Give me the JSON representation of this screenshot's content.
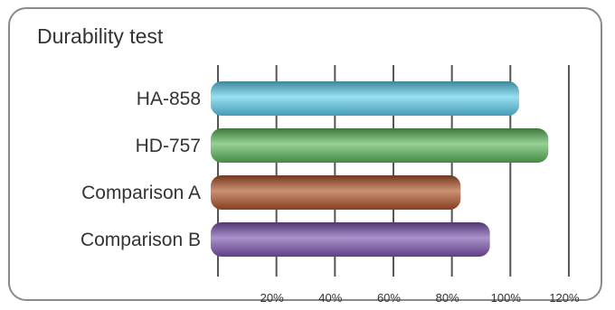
{
  "chart_data": {
    "type": "bar",
    "orientation": "horizontal",
    "title": "Durability test",
    "categories": [
      "HA-858",
      "HD-757",
      "Comparison A",
      "Comparison B"
    ],
    "values": [
      103,
      113,
      83,
      93
    ],
    "xlim": [
      0,
      120
    ],
    "xticks": [
      0,
      20,
      40,
      60,
      80,
      100,
      120
    ],
    "xtick_labels": [
      "",
      "20%",
      "40%",
      "60%",
      "80%",
      "100%",
      "120%"
    ],
    "grid": "vertical",
    "colors": [
      "#5fd0ee",
      "#5cb85c",
      "#b0542a",
      "#7d55b0"
    ]
  }
}
